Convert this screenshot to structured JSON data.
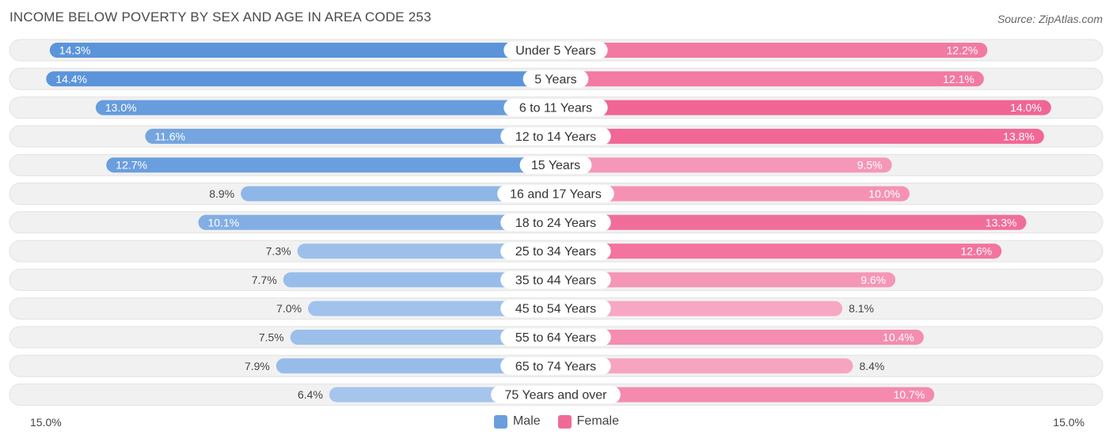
{
  "chart_data": {
    "type": "bar",
    "orientation": "horizontal-diverging",
    "title": "INCOME BELOW POVERTY BY SEX AND AGE IN AREA CODE 253",
    "source": "Source: ZipAtlas.com",
    "categories": [
      "Under 5 Years",
      "5 Years",
      "6 to 11 Years",
      "12 to 14 Years",
      "15 Years",
      "16 and 17 Years",
      "18 to 24 Years",
      "25 to 34 Years",
      "35 to 44 Years",
      "45 to 54 Years",
      "55 to 64 Years",
      "65 to 74 Years",
      "75 Years and over"
    ],
    "series": [
      {
        "name": "Male",
        "color": "#6a9fdc",
        "values": [
          14.3,
          14.4,
          13.0,
          11.6,
          12.7,
          8.9,
          10.1,
          7.3,
          7.7,
          7.0,
          7.5,
          7.9,
          6.4
        ]
      },
      {
        "name": "Female",
        "color": "#f06a97",
        "values": [
          12.2,
          12.1,
          14.0,
          13.8,
          9.5,
          10.0,
          13.3,
          12.6,
          9.6,
          8.1,
          10.4,
          8.4,
          10.7
        ]
      }
    ],
    "value_labels": {
      "male": [
        "14.3%",
        "14.4%",
        "13.0%",
        "11.6%",
        "12.7%",
        "8.9%",
        "10.1%",
        "7.3%",
        "7.7%",
        "7.0%",
        "7.5%",
        "7.9%",
        "6.4%"
      ],
      "female": [
        "12.2%",
        "12.1%",
        "14.0%",
        "13.8%",
        "9.5%",
        "10.0%",
        "13.3%",
        "12.6%",
        "9.6%",
        "8.1%",
        "10.4%",
        "8.4%",
        "10.7%"
      ]
    },
    "xlim": [
      0,
      15.0
    ],
    "axis_left_label": "15.0%",
    "axis_right_label": "15.0%",
    "legend": [
      "Male",
      "Female"
    ],
    "legend_position": "bottom-center"
  }
}
